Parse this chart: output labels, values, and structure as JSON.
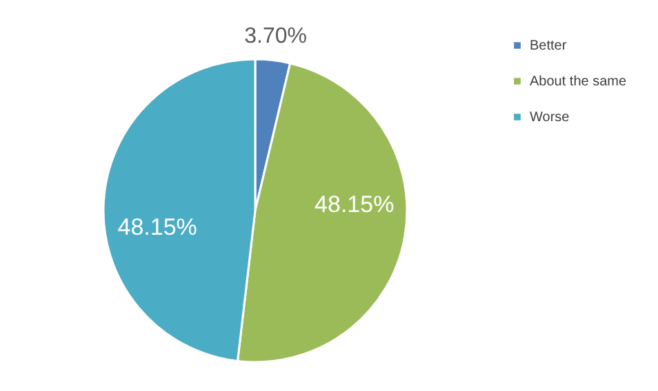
{
  "chart_data": {
    "type": "pie",
    "categories": [
      "Better",
      "About the same",
      "Worse"
    ],
    "values": [
      3.7,
      48.15,
      48.15
    ],
    "colors": [
      "#4f81bd",
      "#9bbb59",
      "#4bacc6"
    ],
    "value_labels": [
      "3.70%",
      "48.15%",
      "48.15%"
    ],
    "legend": "right"
  }
}
